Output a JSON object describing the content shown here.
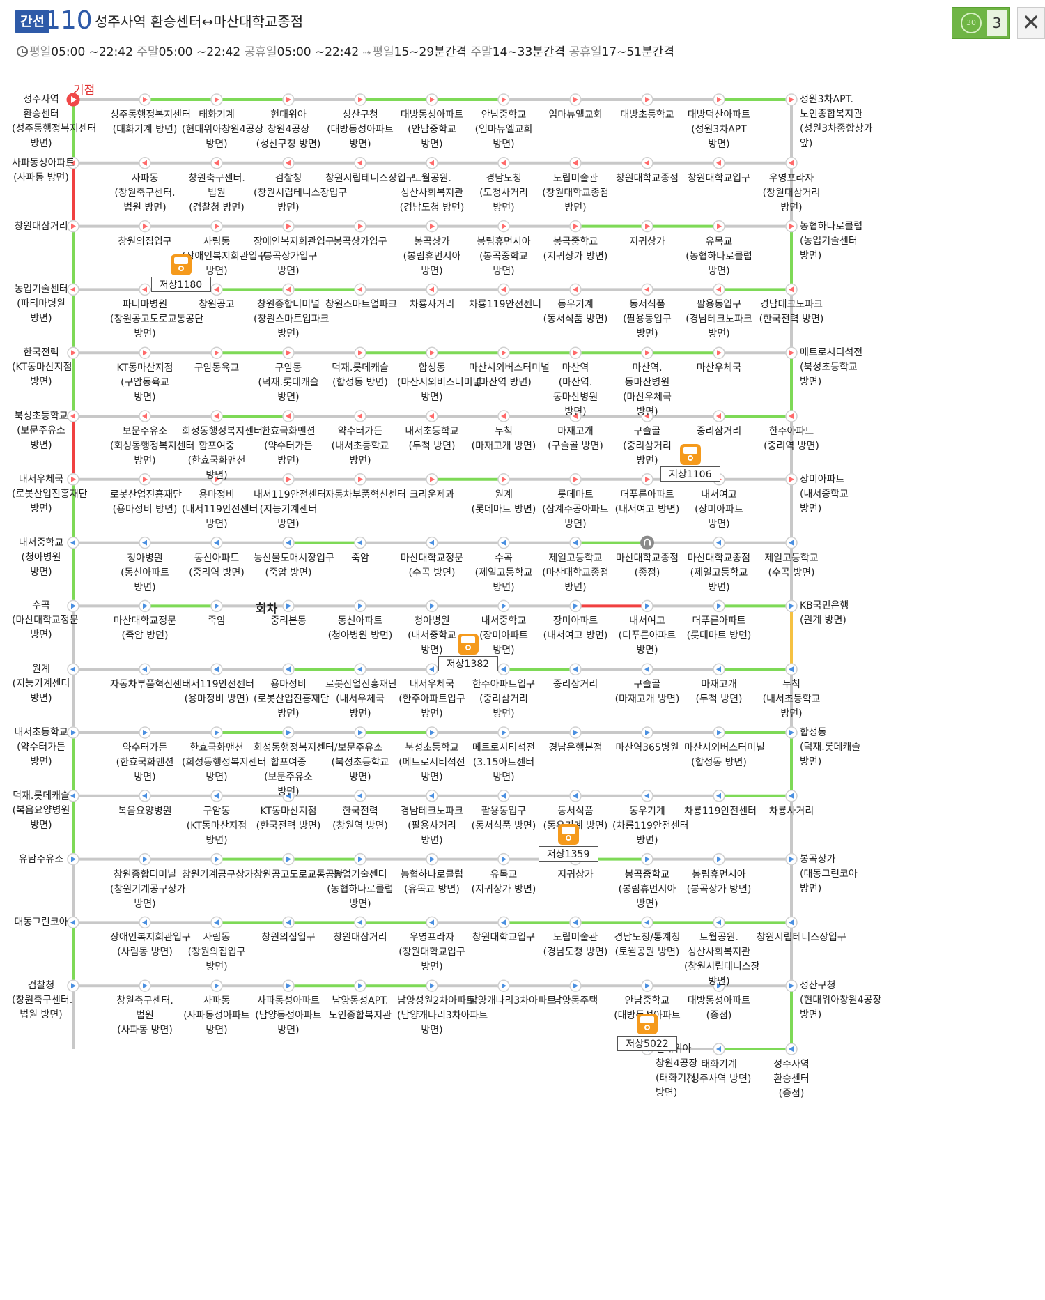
{
  "header": {
    "badge": "간선",
    "route_number": "110",
    "route_name": "성주사역 환승센터↔마산대학교종점",
    "tour_count": "3",
    "tour_icon": "30-icon",
    "close_icon": "close-icon",
    "close_label": "✕"
  },
  "schedule": {
    "weekday_label": "평일",
    "weekday_time": "05:00 ~22:42",
    "weekend_label": "주말",
    "weekend_time": "05:00 ~22:42",
    "holiday_label": "공휴일",
    "holiday_time": "05:00 ~22:42",
    "weekday_interval_label": "평일",
    "weekday_interval": "15~29분간격",
    "weekend_interval_label": "주말",
    "weekend_interval": "14~33분간격",
    "holiday_interval_label": "공휴일",
    "holiday_interval": "17~51분간격"
  },
  "markers": {
    "start": "기점",
    "turnaround": "회차"
  },
  "colors": {
    "green": "#7ed957",
    "red": "#f04040",
    "yellow": "#f5c142",
    "gray": "#c8c8c8",
    "node": "#ff6a6a",
    "blue": "#4a8fe0",
    "bus": "#f59a1c"
  },
  "rows": [
    {
      "dir": "r",
      "stops": [
        "성주사역 환승센터\n(성주동행정복지센터 방면)",
        "성주동행정복지센터\n(태화기계 방면)",
        "태화기계\n(현대위아창원4공장 방면)",
        "현대위아 창원4공장\n(성산구청 방면)",
        "성산구청\n(대방동성아파트 방면)",
        "대방동성아파트\n(안남중학교 방면)",
        "안남중학교\n(임마뉴엘교회 방면)",
        "임마뉴엘교회",
        "대방초등학교",
        "대방덕산아파트\n(성원3차APT 방면)",
        "성원3차APT.노인종합복지관\n(성원3차종합상가 앞)"
      ],
      "seg": [
        "gray",
        "green",
        "green",
        "gray",
        "green",
        "green",
        "gray",
        "gray",
        "gray",
        "green"
      ],
      "sides": [
        "green",
        "gray"
      ]
    },
    {
      "dir": "l",
      "stops": [
        "우영프라자\n(창원대삼거리 방면)",
        "창원대학교입구",
        "창원대학교종점",
        "도립미술관\n(창원대학교종점 방면)",
        "경남도청\n(도청사거리 방면)",
        "토월공원.성산사회복지관\n(경남도청 방면)",
        "창원시립테니스장입구",
        "검찰청\n(창원시립테니스장입구 방면)",
        "창원축구센터.법원\n(검찰청 방면)",
        "사파동\n(창원축구센터.법원 방면)",
        "사파동성아파트\n(사파동 방면)"
      ],
      "seg": [
        "gray",
        "gray",
        "gray",
        "gray",
        "gray",
        "gray",
        "gray",
        "gray",
        "gray",
        "gray"
      ],
      "sides": [
        "red",
        "gray"
      ]
    },
    {
      "dir": "r",
      "stops": [
        "창원대삼거리",
        "창원의집입구",
        "사림동\n(장애인복지회관입구 방면)",
        "장애인복지회관입구\n(봉곡상가입구 방면)",
        "봉곡상가입구",
        "봉곡상가\n(봉림휴먼시아 방면)",
        "봉림휴먼시아\n(봉곡중학교 방면)",
        "봉곡중학교\n(지귀상가 방면)",
        "지귀상가",
        "유목교\n(농협하나로클럽 방면)",
        "농협하나로클럽\n(농업기술센터 방면)"
      ],
      "seg": [
        "gray",
        "gray",
        "gray",
        "gray",
        "gray",
        "gray",
        "gray",
        "green",
        "green",
        "gray"
      ],
      "sides": [
        "green",
        "green"
      ]
    },
    {
      "dir": "l",
      "stops": [
        "경남테크노파크\n(한국전력 방면)",
        "팔용동입구\n(경남테크노파크 방면)",
        "동서식품\n(팔용동입구 방면)",
        "동우기계\n(동서식품 방면)",
        "차룡119안전센터",
        "차룡사거리",
        "창원스마트업파크",
        "창원종합터미널\n(창원스마트업파크 방면)",
        "창원공고",
        "파티마병원\n(창원공고도로교통공단 방면)",
        "농업기술센터\n(파티마병원 방면)"
      ],
      "seg": [
        "green",
        "gray",
        "gray",
        "gray",
        "gray",
        "gray",
        "green",
        "green",
        "gray",
        "gray"
      ],
      "sides": [
        "green",
        "gray"
      ]
    },
    {
      "dir": "r",
      "stops": [
        "한국전력\n(KT동마산지점 방면)",
        "KT동마산지점\n(구암동육교 방면)",
        "구암동육교",
        "구암동\n(덕재.롯데캐슬 방면)",
        "덕재.롯데캐슬\n(합성동 방면)",
        "합성동\n(마산시외버스터미널 방면)",
        "마산시외버스터미널\n(마산역 방면)",
        "마산역\n(마산역.동마산병원 방면)",
        "마산역.동마산병원\n(마산우체국 방면)",
        "마산우체국",
        "메트로시티석전\n(북성초등학교 방면)"
      ],
      "seg": [
        "gray",
        "gray",
        "green",
        "gray",
        "green",
        "green",
        "green",
        "green",
        "green",
        "gray"
      ],
      "sides": [
        "green",
        "green"
      ]
    },
    {
      "dir": "l",
      "stops": [
        "한주아파트\n(중리역 방면)",
        "중리삼거리",
        "구슬골\n(중리삼거리 방면)",
        "마재고개\n(구슬골 방면)",
        "두척\n(마재고개 방면)",
        "내서초등학교\n(두척 방면)",
        "약수터가든\n(내서초등학교 방면)",
        "한효국화맨션\n(약수터가든 방면)",
        "회성동행정복지센터/합포여중\n(한효국화맨션 방면)",
        "보문주유소\n(회성동행정복지센터 방면)",
        "북성초등학교\n(보문주유소 방면)"
      ],
      "seg": [
        "green",
        "gray",
        "gray",
        "gray",
        "gray",
        "gray",
        "gray",
        "green",
        "gray",
        "gray"
      ],
      "sides": [
        "red",
        "gray"
      ]
    },
    {
      "dir": "r",
      "stops": [
        "내서우체국\n(로봇산업진흥재단 방면)",
        "로봇산업진흥재단\n(용마정비 방면)",
        "용마정비\n(내서119안전센터 방면)",
        "내서119안전센터\n(지능기계센터 방면)",
        "자동차부품혁신센터",
        "크리운제과",
        "원계\n(롯데마트 방면)",
        "롯데마트\n(삼계주공아파트 방면)",
        "더푸른아파트\n(내서여고 방면)",
        "내서여고\n(장미아파트 방면)",
        "장미아파트\n(내서중학교 방면)"
      ],
      "seg": [
        "gray",
        "gray",
        "gray",
        "gray",
        "gray",
        "green",
        "gray",
        "gray",
        "gray",
        "gray"
      ],
      "sides": [
        "green",
        "gray"
      ]
    },
    {
      "dir": "l",
      "stops": [
        "제일고등학교\n(수곡 방면)",
        "마산대학교종점\n(제일고등학교 방면)",
        "마산대학교종점\n(종점)",
        "제일고등학교\n(마산대학교종점 방면)",
        "수곡\n(제일고등학교 방면)",
        "마산대학교정문\n(수곡 방면)",
        "죽암",
        "농산물도매시장입구\n(죽암 방면)",
        "동신아파트\n(중리역 방면)",
        "청아병원\n(동신아파트 방면)",
        "내서중학교\n(청아병원 방면)"
      ],
      "seg": [
        "gray",
        "gray",
        "green",
        "gray",
        "gray",
        "gray",
        "green",
        "gray",
        "gray",
        "gray"
      ],
      "sides": [
        "green",
        "gray"
      ]
    },
    {
      "dir": "r",
      "stops": [
        "수곡\n(마산대학교정문 방면)",
        "마산대학교정문\n(죽암 방면)",
        "죽암",
        "중리본동",
        "동신아파트\n(청아병원 방면)",
        "청아병원\n(내서중학교 방면)",
        "내서중학교\n(장미아파트 방면)",
        "장미아파트\n(내서여고 방면)",
        "내서여고\n(더푸른아파트 방면)",
        "더푸른아파트\n(롯데마트 방면)",
        "KB국민은행\n(원계 방면)"
      ],
      "seg": [
        "gray",
        "green",
        "gray",
        "gray",
        "gray",
        "gray",
        "gray",
        "red",
        "gray",
        "green"
      ],
      "sides": [
        "gray",
        "yellow"
      ]
    },
    {
      "dir": "l",
      "stops": [
        "두척\n(내서초등학교 방면)",
        "마재고개\n(두척 방면)",
        "구슬골\n(마재고개 방면)",
        "중리삼거리",
        "한주아파트입구\n(중리삼거리 방면)",
        "내서우체국\n(한주아파트입구 방면)",
        "로봇산업진흥재단\n(내서우체국 방면)",
        "용마정비\n(로봇산업진흥재단 방면)",
        "내서119안전센터\n(용마정비 방면)",
        "자동차부품혁신센터",
        "원계\n(지능기계센터 방면)"
      ],
      "seg": [
        "green",
        "gray",
        "gray",
        "green",
        "red",
        "gray",
        "green",
        "gray",
        "gray",
        "gray"
      ],
      "sides": [
        "gray",
        "gray"
      ]
    },
    {
      "dir": "r",
      "stops": [
        "내서초등학교\n(약수터가든 방면)",
        "약수터가든\n(한효국화맨션 방면)",
        "한효국화맨션\n(회성동행정복지센터 방면)",
        "회성동행정복지센터/합포여중\n(보문주유소 방면)",
        "보문주유소\n(북성초등학교 방면)",
        "북성초등학교\n(메트로시티석전 방면)",
        "메트로시티석전\n(3.15아트센터 방면)",
        "경남은행본점",
        "마산역365병원",
        "마산시외버스터미널\n(합성동 방면)",
        "합성동\n(덕재.롯데캐슬 방면)"
      ],
      "seg": [
        "gray",
        "gray",
        "green",
        "gray",
        "green",
        "gray",
        "gray",
        "gray",
        "gray",
        "green"
      ],
      "sides": [
        "green",
        "green"
      ]
    },
    {
      "dir": "l",
      "stops": [
        "차룡사거리",
        "차룡119안전센터",
        "동우기계\n(차룡119안전센터 방면)",
        "동서식품\n(동우기계 방면)",
        "팔용동입구\n(동서식품 방면)",
        "경남테크노파크\n(팔용사거리 방면)",
        "한국전력\n(창원역 방면)",
        "KT동마산지점\n(한국전력 방면)",
        "구암동\n(KT동마산지점 방면)",
        "복음요양병원",
        "덕재.롯데캐슬\n(복음요양병원 방면)"
      ],
      "seg": [
        "green",
        "gray",
        "gray",
        "gray",
        "gray",
        "gray",
        "gray",
        "gray",
        "gray",
        "gray"
      ],
      "sides": [
        "green",
        "gray"
      ]
    },
    {
      "dir": "r",
      "stops": [
        "유남주유소",
        "창원종합터미널\n(창원기계공구상가 방면)",
        "창원기계공구상가",
        "창원공고도로교통공단",
        "농업기술센터\n(농협하나로클럽 방면)",
        "농협하나로클럽\n(유목교 방면)",
        "유목교\n(지귀상가 방면)",
        "지귀상가",
        "봉곡중학교\n(봉림휴먼시아 방면)",
        "봉림휴먼시아\n(봉곡상가 방면)",
        "봉곡상가\n(대동그린코아 방면)"
      ],
      "seg": [
        "gray",
        "gray",
        "green",
        "green",
        "gray",
        "gray",
        "gray",
        "green",
        "gray",
        "gray"
      ],
      "sides": [
        "gray",
        "gray"
      ]
    },
    {
      "dir": "l",
      "stops": [
        "창원시립테니스장입구",
        "토월공원.성산사회복지관\n(창원시립테니스장 방면)",
        "경남도청/통계청\n(토월공원 방면)",
        "도립미술관\n(경남도청 방면)",
        "창원대학교입구",
        "우영프라자\n(창원대학교입구 방면)",
        "창원대삼거리",
        "창원의집입구",
        "사림동\n(창원의집입구 방면)",
        "장애인복지회관입구\n(사림동 방면)",
        "대동그린코아"
      ],
      "seg": [
        "green",
        "green",
        "green",
        "green",
        "gray",
        "green",
        "green",
        "green",
        "gray",
        "gray"
      ],
      "sides": [
        "green",
        "gray"
      ]
    },
    {
      "dir": "r",
      "stops": [
        "검찰청\n(창원축구센터.법원 방면)",
        "창원축구센터.법원\n(사파동 방면)",
        "사파동\n(사파동성아파트 방면)",
        "사파동성아파트\n(남양동성아파트 방면)",
        "남양동성APT.노인종합복지관",
        "남양성원2차아파트\n(남양개나리3차아파트 방면)",
        "남양개나리3차아파트",
        "남양동주택",
        "안남중학교\n(대방동성아파트 방면)",
        "대방동성아파트\n(종점)",
        "성산구청\n(현대위아창원4공장 방면)"
      ],
      "seg": [
        "gray",
        "gray",
        "gray",
        "green",
        "green",
        "gray",
        "gray",
        "gray",
        "gray",
        "gray"
      ],
      "sides": [
        "gray",
        "green"
      ]
    },
    {
      "dir": "l",
      "stops": [
        "성주사역 환승센터\n(종점)",
        "태화기계\n(성주사역 방면)",
        "현대위아 창원4공장\n(태화기계 방면)"
      ],
      "seg": [
        "green",
        "gray"
      ],
      "sides": [
        "",
        ""
      ]
    }
  ],
  "buses": [
    {
      "label": "저상1180"
    },
    {
      "label": "저상1106"
    },
    {
      "label": "저상1382"
    },
    {
      "label": "저상1359"
    },
    {
      "label": "저상5022"
    }
  ]
}
